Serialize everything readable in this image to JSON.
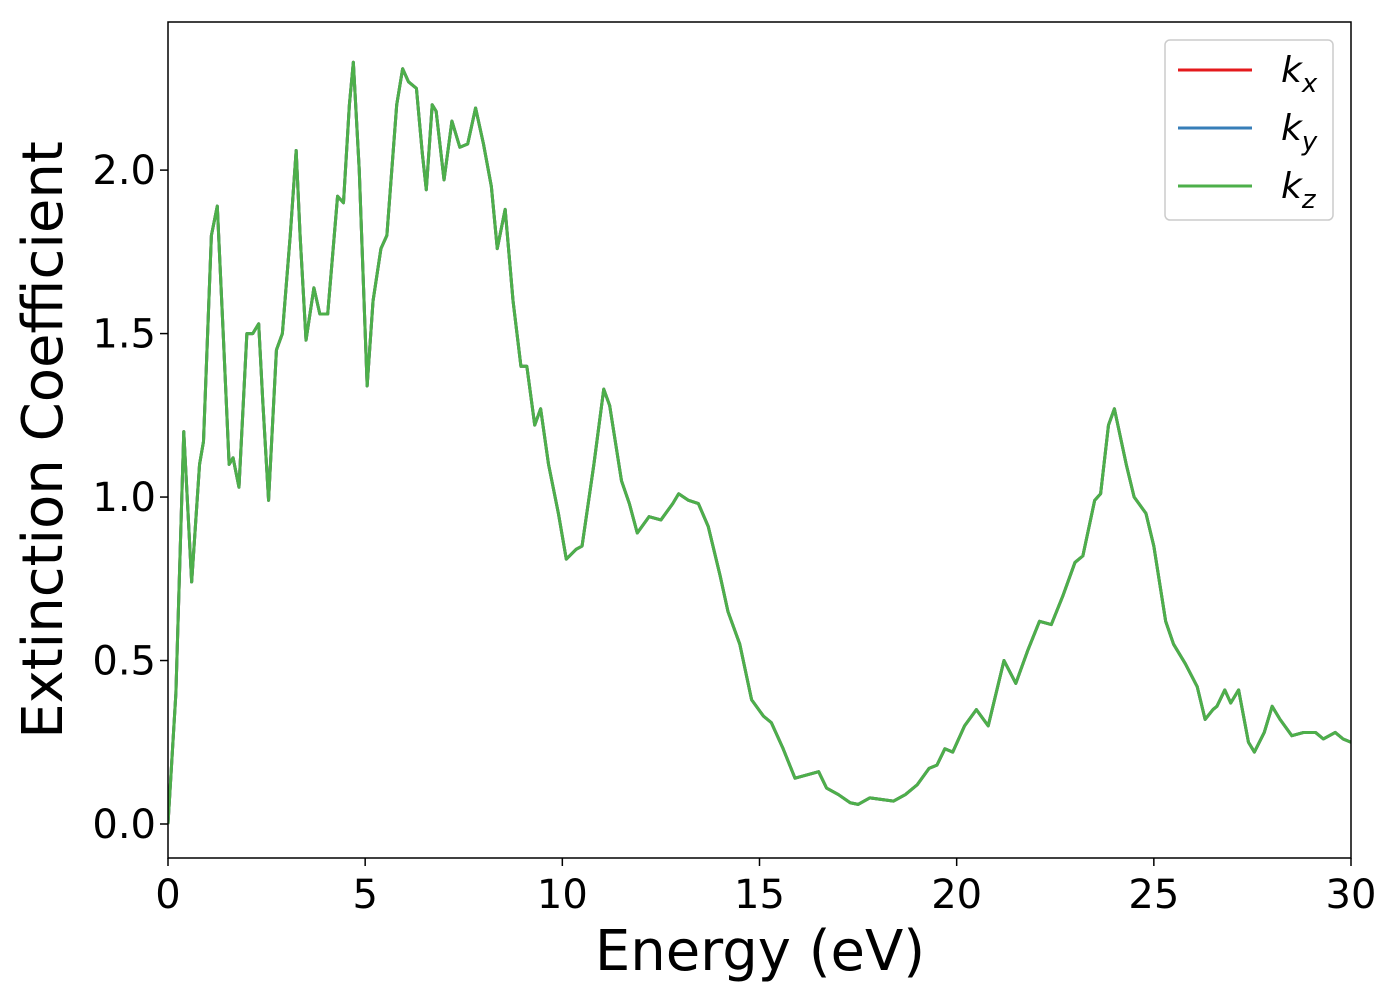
{
  "chart_data": {
    "type": "line",
    "xlabel": "Energy (eV)",
    "ylabel": "Extinction Coefficient",
    "xlim": [
      0,
      30
    ],
    "ylim": [
      -0.104,
      2.453
    ],
    "xticks": [
      0,
      5,
      10,
      15,
      20,
      25,
      30
    ],
    "yticks": [
      {
        "value": 0,
        "label": "0.0"
      },
      {
        "value": 0.5,
        "label": "0.5"
      },
      {
        "value": 1,
        "label": "1.0"
      },
      {
        "value": 1.5,
        "label": "1.5"
      },
      {
        "value": 2,
        "label": "2.0"
      }
    ],
    "legend": "upper right",
    "grid": false,
    "x": [
      0,
      0.2,
      0.4,
      0.6,
      0.8,
      0.9,
      1.1,
      1.25,
      1.4,
      1.55,
      1.65,
      1.8,
      2.0,
      2.15,
      2.3,
      2.4,
      2.55,
      2.75,
      2.9,
      3.1,
      3.25,
      3.35,
      3.5,
      3.7,
      3.85,
      4.05,
      4.3,
      4.45,
      4.6,
      4.7,
      4.85,
      5.05,
      5.2,
      5.4,
      5.55,
      5.8,
      5.95,
      6.1,
      6.3,
      6.45,
      6.55,
      6.7,
      6.8,
      7.0,
      7.2,
      7.4,
      7.6,
      7.8,
      8.0,
      8.2,
      8.35,
      8.55,
      8.75,
      8.95,
      9.1,
      9.3,
      9.45,
      9.65,
      9.9,
      10.1,
      10.35,
      10.5,
      10.8,
      11.05,
      11.2,
      11.5,
      11.7,
      11.9,
      12.2,
      12.5,
      12.8,
      12.95,
      13.2,
      13.45,
      13.7,
      14.0,
      14.2,
      14.5,
      14.8,
      15.1,
      15.3,
      15.6,
      15.9,
      16.2,
      16.5,
      16.7,
      17.0,
      17.3,
      17.5,
      17.8,
      18.1,
      18.4,
      18.7,
      19.0,
      19.3,
      19.5,
      19.7,
      19.9,
      20.2,
      20.5,
      20.8,
      21.2,
      21.5,
      21.8,
      22.1,
      22.4,
      22.7,
      23.0,
      23.2,
      23.5,
      23.65,
      23.85,
      24.0,
      24.3,
      24.5,
      24.8,
      25.0,
      25.3,
      25.5,
      25.8,
      26.1,
      26.3,
      26.5,
      26.6,
      26.8,
      26.95,
      27.15,
      27.4,
      27.55,
      27.8,
      28.0,
      28.2,
      28.5,
      28.8,
      29.1,
      29.3,
      29.6,
      29.8,
      30.0
    ],
    "series": [
      {
        "name": "kx",
        "color": "#e41a1c",
        "values": [
          0,
          0.4,
          1.2,
          0.74,
          1.1,
          1.17,
          1.8,
          1.89,
          1.5,
          1.1,
          1.12,
          1.03,
          1.5,
          1.5,
          1.53,
          1.3,
          0.99,
          1.45,
          1.5,
          1.8,
          2.06,
          1.8,
          1.48,
          1.64,
          1.56,
          1.56,
          1.92,
          1.9,
          2.2,
          2.33,
          2.0,
          1.34,
          1.6,
          1.76,
          1.8,
          2.2,
          2.31,
          2.27,
          2.25,
          2.05,
          1.94,
          2.2,
          2.18,
          1.97,
          2.15,
          2.07,
          2.08,
          2.19,
          2.08,
          1.95,
          1.76,
          1.88,
          1.6,
          1.4,
          1.4,
          1.22,
          1.27,
          1.1,
          0.95,
          0.81,
          0.84,
          0.85,
          1.1,
          1.33,
          1.28,
          1.05,
          0.98,
          0.89,
          0.94,
          0.93,
          0.98,
          1.01,
          0.99,
          0.98,
          0.91,
          0.76,
          0.65,
          0.55,
          0.38,
          0.33,
          0.31,
          0.23,
          0.14,
          0.15,
          0.16,
          0.11,
          0.09,
          0.065,
          0.06,
          0.08,
          0.075,
          0.07,
          0.09,
          0.12,
          0.17,
          0.18,
          0.23,
          0.22,
          0.3,
          0.35,
          0.3,
          0.5,
          0.43,
          0.53,
          0.62,
          0.61,
          0.7,
          0.8,
          0.82,
          0.99,
          1.01,
          1.22,
          1.27,
          1.1,
          1.0,
          0.95,
          0.85,
          0.62,
          0.55,
          0.49,
          0.42,
          0.32,
          0.35,
          0.36,
          0.41,
          0.37,
          0.41,
          0.25,
          0.22,
          0.28,
          0.36,
          0.32,
          0.27,
          0.28,
          0.28,
          0.26,
          0.28,
          0.26,
          0.25
        ]
      },
      {
        "name": "ky",
        "color": "#377eb8",
        "values": [
          0,
          0.4,
          1.2,
          0.74,
          1.1,
          1.17,
          1.8,
          1.89,
          1.5,
          1.1,
          1.12,
          1.03,
          1.5,
          1.5,
          1.53,
          1.3,
          0.99,
          1.45,
          1.5,
          1.8,
          2.06,
          1.8,
          1.48,
          1.64,
          1.56,
          1.56,
          1.92,
          1.9,
          2.2,
          2.33,
          2.0,
          1.34,
          1.6,
          1.76,
          1.8,
          2.2,
          2.31,
          2.27,
          2.25,
          2.05,
          1.94,
          2.2,
          2.18,
          1.97,
          2.15,
          2.07,
          2.08,
          2.19,
          2.08,
          1.95,
          1.76,
          1.88,
          1.6,
          1.4,
          1.4,
          1.22,
          1.27,
          1.1,
          0.95,
          0.81,
          0.84,
          0.85,
          1.1,
          1.33,
          1.28,
          1.05,
          0.98,
          0.89,
          0.94,
          0.93,
          0.98,
          1.01,
          0.99,
          0.98,
          0.91,
          0.76,
          0.65,
          0.55,
          0.38,
          0.33,
          0.31,
          0.23,
          0.14,
          0.15,
          0.16,
          0.11,
          0.09,
          0.065,
          0.06,
          0.08,
          0.075,
          0.07,
          0.09,
          0.12,
          0.17,
          0.18,
          0.23,
          0.22,
          0.3,
          0.35,
          0.3,
          0.5,
          0.43,
          0.53,
          0.62,
          0.61,
          0.7,
          0.8,
          0.82,
          0.99,
          1.01,
          1.22,
          1.27,
          1.1,
          1.0,
          0.95,
          0.85,
          0.62,
          0.55,
          0.49,
          0.42,
          0.32,
          0.35,
          0.36,
          0.41,
          0.37,
          0.41,
          0.25,
          0.22,
          0.28,
          0.36,
          0.32,
          0.27,
          0.28,
          0.28,
          0.26,
          0.28,
          0.26,
          0.25
        ]
      },
      {
        "name": "kz",
        "color": "#4daf4a",
        "values": [
          0,
          0.4,
          1.2,
          0.74,
          1.1,
          1.17,
          1.8,
          1.89,
          1.5,
          1.1,
          1.12,
          1.03,
          1.5,
          1.5,
          1.53,
          1.3,
          0.99,
          1.45,
          1.5,
          1.8,
          2.06,
          1.8,
          1.48,
          1.64,
          1.56,
          1.56,
          1.92,
          1.9,
          2.2,
          2.33,
          2.0,
          1.34,
          1.6,
          1.76,
          1.8,
          2.2,
          2.31,
          2.27,
          2.25,
          2.05,
          1.94,
          2.2,
          2.18,
          1.97,
          2.15,
          2.07,
          2.08,
          2.19,
          2.08,
          1.95,
          1.76,
          1.88,
          1.6,
          1.4,
          1.4,
          1.22,
          1.27,
          1.1,
          0.95,
          0.81,
          0.84,
          0.85,
          1.1,
          1.33,
          1.28,
          1.05,
          0.98,
          0.89,
          0.94,
          0.93,
          0.98,
          1.01,
          0.99,
          0.98,
          0.91,
          0.76,
          0.65,
          0.55,
          0.38,
          0.33,
          0.31,
          0.23,
          0.14,
          0.15,
          0.16,
          0.11,
          0.09,
          0.065,
          0.06,
          0.08,
          0.075,
          0.07,
          0.09,
          0.12,
          0.17,
          0.18,
          0.23,
          0.22,
          0.3,
          0.35,
          0.3,
          0.5,
          0.43,
          0.53,
          0.62,
          0.61,
          0.7,
          0.8,
          0.82,
          0.99,
          1.01,
          1.22,
          1.27,
          1.1,
          1.0,
          0.95,
          0.85,
          0.62,
          0.55,
          0.49,
          0.42,
          0.32,
          0.35,
          0.36,
          0.41,
          0.37,
          0.41,
          0.25,
          0.22,
          0.28,
          0.36,
          0.32,
          0.27,
          0.28,
          0.28,
          0.26,
          0.28,
          0.26,
          0.25
        ]
      }
    ]
  }
}
